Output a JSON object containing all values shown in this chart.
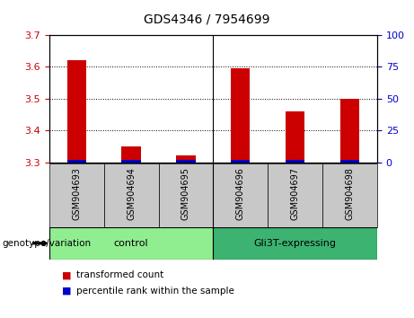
{
  "title": "GDS4346 / 7954699",
  "samples": [
    "GSM904693",
    "GSM904694",
    "GSM904695",
    "GSM904696",
    "GSM904697",
    "GSM904698"
  ],
  "red_values": [
    3.62,
    3.35,
    3.32,
    3.595,
    3.46,
    3.5
  ],
  "blue_values": [
    3.305,
    3.305,
    3.305,
    3.305,
    3.305,
    3.305
  ],
  "ylim_left": [
    3.3,
    3.7
  ],
  "ylim_right": [
    0,
    100
  ],
  "yticks_left": [
    3.3,
    3.4,
    3.5,
    3.6,
    3.7
  ],
  "yticks_right": [
    0,
    25,
    50,
    75,
    100
  ],
  "groups": [
    {
      "label": "control",
      "indices": [
        0,
        1,
        2
      ],
      "color": "#90EE90"
    },
    {
      "label": "Gli3T-expressing",
      "indices": [
        3,
        4,
        5
      ],
      "color": "#3CB371"
    }
  ],
  "bar_bottom": 3.3,
  "red_color": "#CC0000",
  "blue_color": "#0000CC",
  "left_tick_color": "#CC0000",
  "right_tick_color": "#0000CC",
  "legend_red_label": "transformed count",
  "legend_blue_label": "percentile rank within the sample",
  "genotype_label": "genotype/variation",
  "background_color": "#FFFFFF",
  "sample_bg_color": "#C8C8C8",
  "bar_width": 0.35
}
